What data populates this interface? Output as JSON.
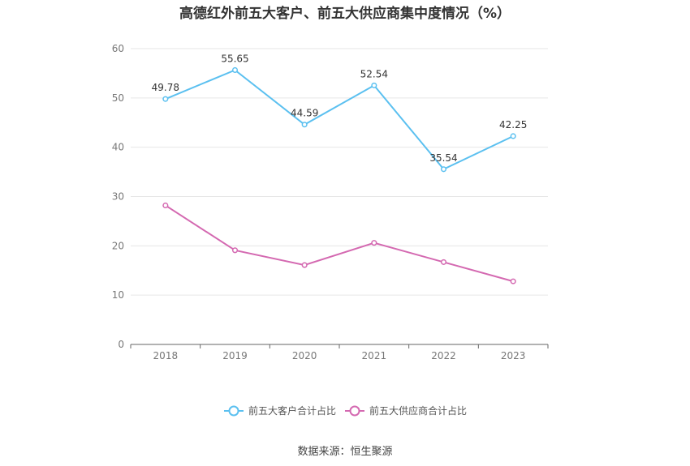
{
  "title": "高德红外前五大客户、前五大供应商集中度情况（%）",
  "source": "数据来源：恒生聚源",
  "chart_data": {
    "type": "line",
    "title": "高德红外前五大客户、前五大供应商集中度情况（%）",
    "x": [
      "2018",
      "2019",
      "2020",
      "2021",
      "2022",
      "2023"
    ],
    "ylim": [
      0,
      60
    ],
    "yticks": [
      0,
      10,
      20,
      30,
      40,
      50,
      60
    ],
    "grid": true,
    "legend_position": "bottom",
    "series": [
      {
        "name": "前五大客户合计占比",
        "color": "#5bc0f0",
        "values": [
          49.78,
          55.65,
          44.59,
          52.54,
          35.54,
          42.25
        ],
        "labels": [
          "49.78",
          "55.65",
          "44.59",
          "52.54",
          "35.54",
          "42.25"
        ]
      },
      {
        "name": "前五大供应商合计占比",
        "color": "#d469b1",
        "values": [
          28.2,
          19.1,
          16.1,
          20.6,
          16.7,
          12.8
        ]
      }
    ]
  }
}
